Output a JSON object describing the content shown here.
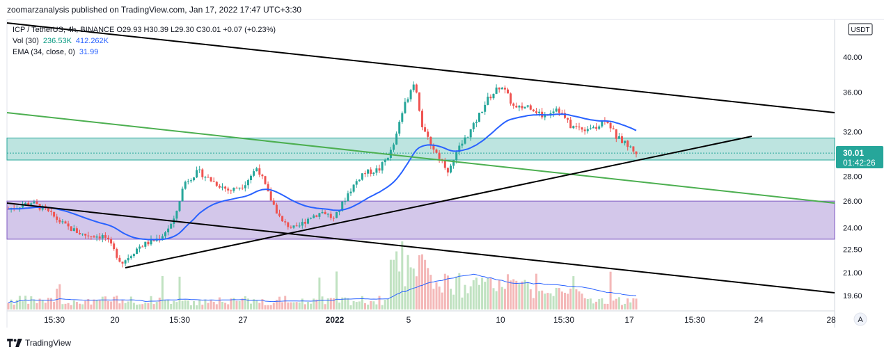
{
  "header": {
    "publish_line": "zoomarzanalysis published on TradingView.com, Jan 17, 2022 17:47 UTC+3:30"
  },
  "legend": {
    "symbol_line": "ICP / TetherUS, 4h, BINANCE  O29.93  H30.39  L29.30  C30.01  +0.07 (+0.23%)",
    "vol_label": "Vol (30)",
    "vol_value_1": "236.53K",
    "vol_value_2": "412.262K",
    "ema_label": "EMA (34, close, 0)",
    "ema_value": "31.99"
  },
  "price_axis": {
    "currency_button": "USDT",
    "ticks": [
      "40.00",
      "36.00",
      "32.00",
      "28.00",
      "26.00",
      "24.00",
      "22.50",
      "21.00",
      "19.60"
    ],
    "price_tag": "30.01",
    "countdown_tag": "01:42:26",
    "auto_button": "A"
  },
  "time_axis": {
    "labels": [
      "15:30",
      "20",
      "15:30",
      "27",
      "2022",
      "5",
      "10",
      "15:30",
      "17",
      "15:30",
      "24",
      "28"
    ]
  },
  "footer": {
    "brand": "TradingView"
  },
  "colors": {
    "up": "#26a69a",
    "down": "#ef5350",
    "ema": "#2962ff",
    "green_zone": "#b2dfdb",
    "purple_zone": "#d1c4e9",
    "green_line": "#4caf50"
  },
  "chart_data": {
    "type": "candlestick",
    "symbol": "ICP / TetherUS, 4h, BINANCE",
    "y_scale": "log",
    "ylim": [
      19.3,
      41.6
    ],
    "ohlc_last": {
      "open": 29.93,
      "high": 30.39,
      "low": 29.3,
      "close": 30.01,
      "change": 0.07,
      "change_pct": 0.23
    },
    "ema_34_last": 31.99,
    "volume_last": "236.53K",
    "volume_ma_30": "412.262K",
    "zones": [
      {
        "name": "upper_zone",
        "from": 29.4,
        "to": 31.4
      },
      {
        "name": "lower_zone",
        "from": 23.2,
        "to": 26.0
      }
    ],
    "path_anchors": [
      [
        12,
        25.4
      ],
      [
        45,
        25.9
      ],
      [
        65,
        25.3
      ],
      [
        95,
        24.1
      ],
      [
        120,
        23.5
      ],
      [
        150,
        23.4
      ],
      [
        175,
        21.6
      ],
      [
        200,
        22.7
      ],
      [
        230,
        23.3
      ],
      [
        250,
        24.5
      ],
      [
        265,
        27.5
      ],
      [
        285,
        28.4
      ],
      [
        305,
        27.6
      ],
      [
        330,
        26.8
      ],
      [
        350,
        27.3
      ],
      [
        370,
        28.8
      ],
      [
        385,
        26.6
      ],
      [
        405,
        24.4
      ],
      [
        425,
        23.9
      ],
      [
        445,
        24.8
      ],
      [
        465,
        25.2
      ],
      [
        480,
        24.6
      ],
      [
        500,
        26.6
      ],
      [
        520,
        28.2
      ],
      [
        545,
        28.6
      ],
      [
        565,
        30.5
      ],
      [
        580,
        34.4
      ],
      [
        595,
        37.3
      ],
      [
        608,
        32.0
      ],
      [
        625,
        30.2
      ],
      [
        645,
        28.4
      ],
      [
        660,
        30.5
      ],
      [
        680,
        32.5
      ],
      [
        700,
        35.2
      ],
      [
        720,
        36.8
      ],
      [
        740,
        34.2
      ],
      [
        760,
        34.6
      ],
      [
        780,
        33.5
      ],
      [
        800,
        34.4
      ],
      [
        820,
        32.5
      ],
      [
        840,
        32.3
      ],
      [
        860,
        32.6
      ],
      [
        870,
        33.4
      ],
      [
        885,
        31.5
      ],
      [
        900,
        30.8
      ],
      [
        915,
        30.0
      ]
    ]
  }
}
